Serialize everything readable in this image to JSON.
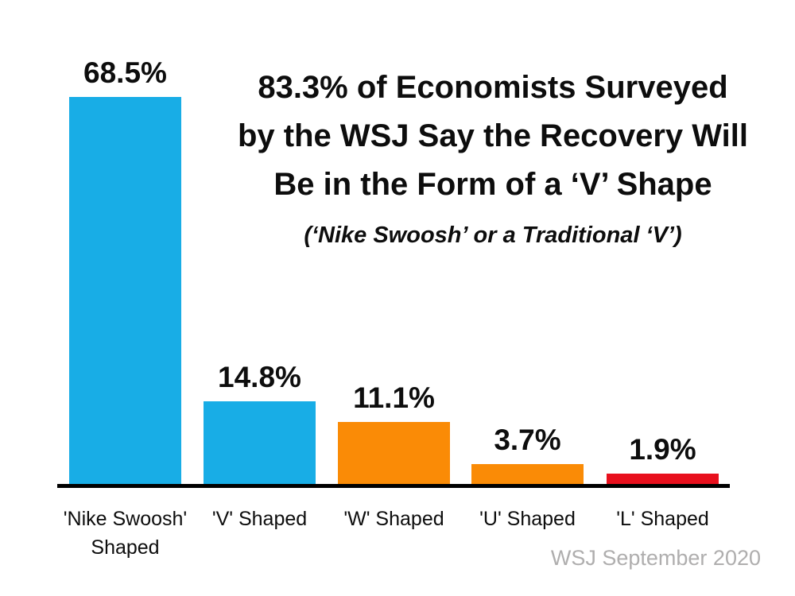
{
  "chart_data": {
    "type": "bar",
    "categories": [
      "'Nike Swoosh' Shaped",
      "'V' Shaped",
      "'W' Shaped",
      "'U' Shaped",
      "'L' Shaped"
    ],
    "values": [
      68.5,
      14.8,
      11.1,
      3.7,
      1.9
    ],
    "value_labels": [
      "68.5%",
      "14.8%",
      "11.1%",
      "3.7%",
      "1.9%"
    ],
    "bar_colors": [
      "#18ade6",
      "#18ade6",
      "#fa8b06",
      "#fa8b06",
      "#e8101d"
    ],
    "title": "83.3% of Economists Surveyed by the WSJ Say the Recovery Will Be in the Form of a ‘V’ Shape",
    "subtitle": "(‘Nike Swoosh’ or a Traditional ‘V’)",
    "xlabel": "",
    "ylabel": "",
    "ylim": [
      0,
      70
    ],
    "grid": false,
    "legend": false,
    "value_label_position": "above-bars",
    "source": "WSJ September 2020"
  },
  "title": {
    "line1": "83.3% of Economists Surveyed",
    "line2": "by the WSJ Say the Recovery Will",
    "line3": "Be in the Form of a ‘V’ Shape"
  },
  "subtitle": "(‘Nike Swoosh’ or a Traditional ‘V’)",
  "source": "WSJ September 2020",
  "colors": {
    "background": "#ffffff",
    "bar_blue": "#18ade6",
    "bar_orange": "#fa8b06",
    "bar_red": "#e8101d",
    "axis": "#000000",
    "text": "#0d0d0d",
    "source_text": "#afaeae"
  }
}
